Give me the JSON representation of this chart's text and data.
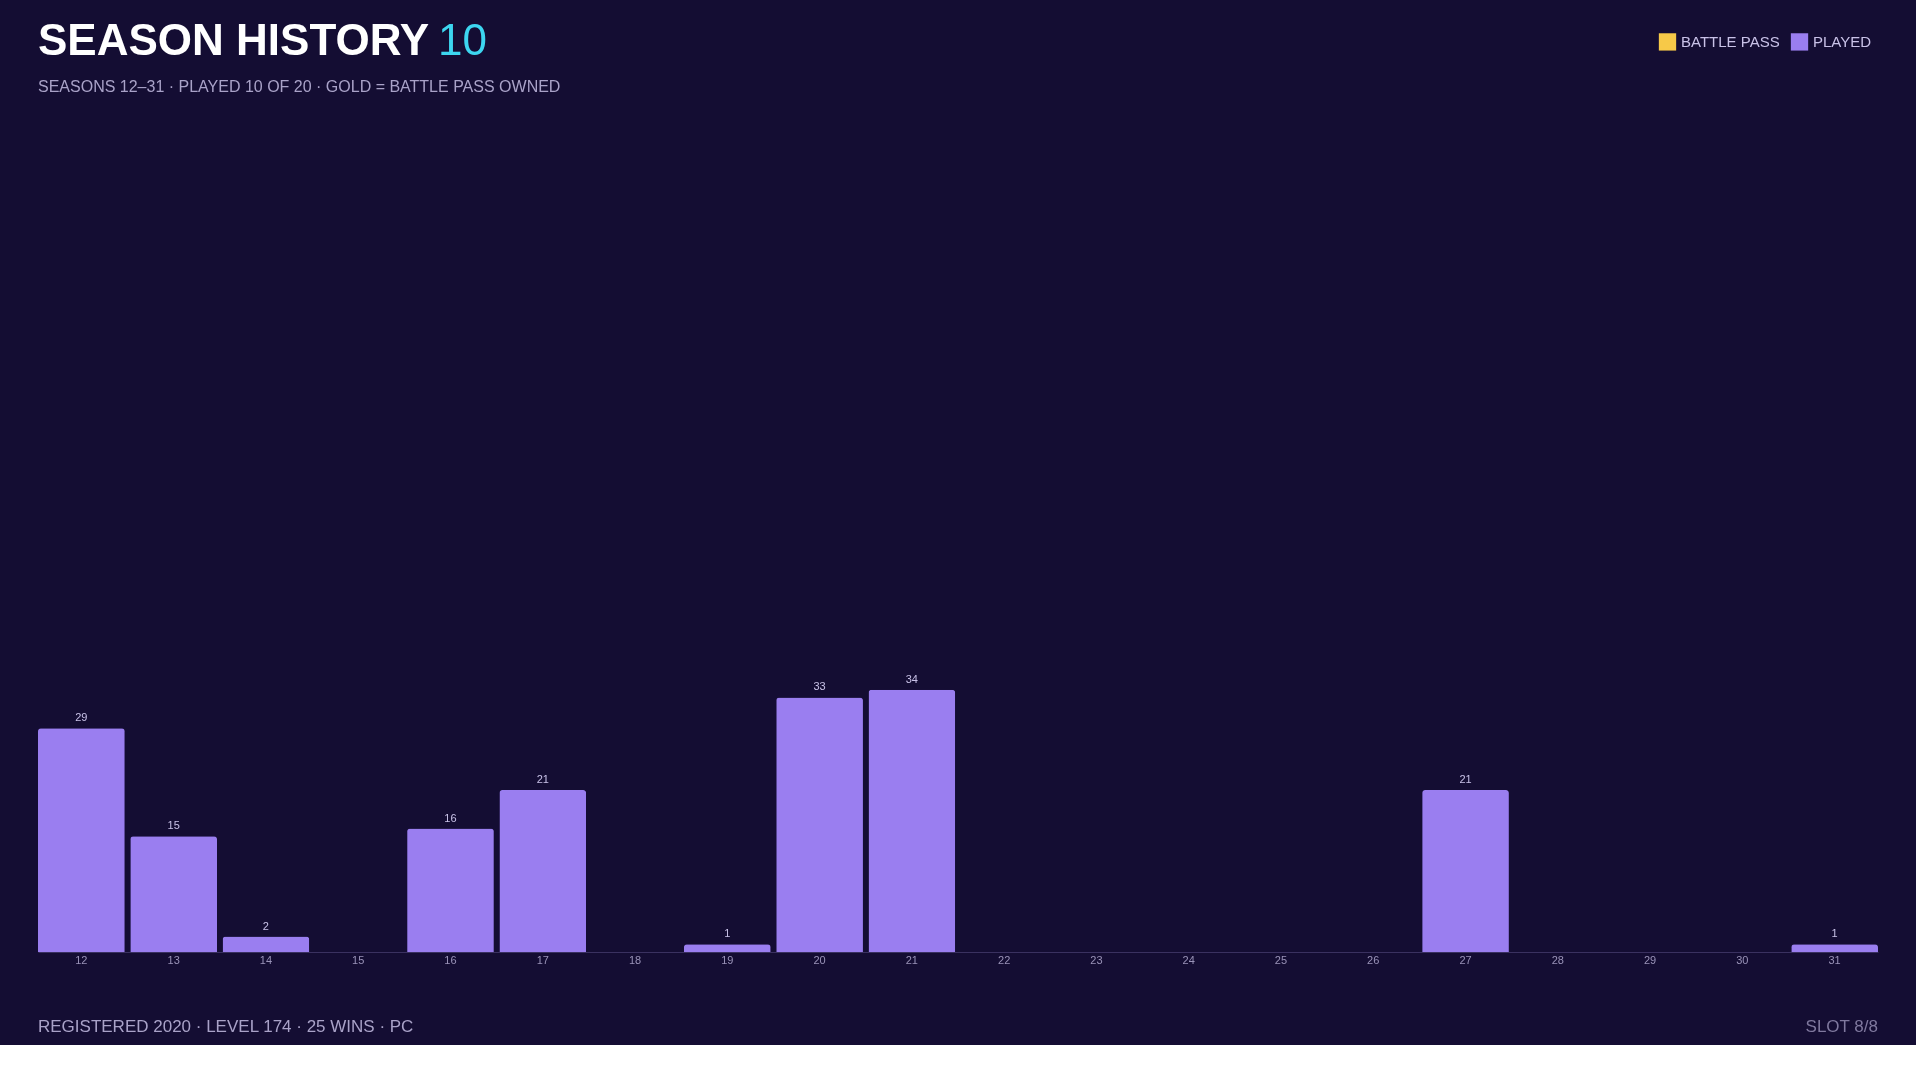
{
  "chart_data": {
    "type": "bar",
    "title": "SEASON HISTORY",
    "subtitle": "SEASONS 12–31 · PLAYED 10 OF 20 · GOLD = BATTLE PASS OWNED",
    "categories": [
      "12",
      "13",
      "14",
      "15",
      "16",
      "17",
      "18",
      "19",
      "20",
      "21",
      "22",
      "23",
      "24",
      "25",
      "26",
      "27",
      "28",
      "29",
      "30",
      "31"
    ],
    "series": [
      {
        "name": "BATTLE PASS",
        "color": "#f7c948",
        "values": [
          null,
          null,
          null,
          null,
          null,
          null,
          null,
          null,
          null,
          null,
          null,
          null,
          null,
          null,
          null,
          null,
          null,
          null,
          null,
          null
        ]
      },
      {
        "name": "PLAYED",
        "color": "#9a7ef0",
        "values": [
          29,
          15,
          2,
          null,
          16,
          21,
          null,
          1,
          33,
          34,
          null,
          null,
          null,
          null,
          null,
          21,
          null,
          null,
          null,
          1
        ]
      }
    ],
    "stacked": true,
    "data_labels": true,
    "grid": false,
    "legend": "top right",
    "annotations": [
      "10",
      "REGISTERED 2020 · LEVEL 174 · 25 WINS · PC",
      "SLOT 8/8"
    ]
  }
}
